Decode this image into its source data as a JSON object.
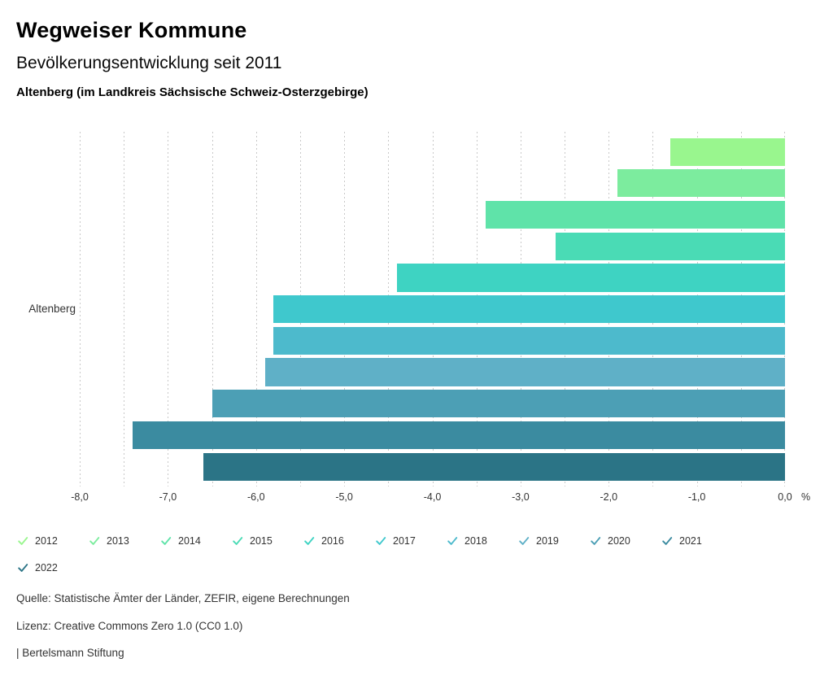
{
  "header": {
    "title": "Wegweiser Kommune",
    "subtitle": "Bevölkerungsentwicklung seit 2011",
    "region_line": "Altenberg (im Landkreis Sächsische Schweiz-Osterzgebirge)"
  },
  "chart_data": {
    "type": "bar",
    "orientation": "horizontal",
    "title": "Bevölkerungsentwicklung seit 2011",
    "category": "Altenberg",
    "xlim": [
      -8.0,
      0.0
    ],
    "grid_step": 0.5,
    "grid_color": "#c8c8c8",
    "x_ticks": [
      "-8,0",
      "-7,0",
      "-6,0",
      "-5,0",
      "-4,0",
      "-3,0",
      "-2,0",
      "-1,0",
      "0,0"
    ],
    "x_unit": "%",
    "legend_position": "bottom",
    "series": [
      {
        "name": "2012",
        "value": -1.3,
        "color": "#99f68e"
      },
      {
        "name": "2013",
        "value": -1.9,
        "color": "#7cec9e"
      },
      {
        "name": "2014",
        "value": -3.4,
        "color": "#5fe3a9"
      },
      {
        "name": "2015",
        "value": -2.6,
        "color": "#4adbb5"
      },
      {
        "name": "2016",
        "value": -4.4,
        "color": "#3ed3c2"
      },
      {
        "name": "2017",
        "value": -5.8,
        "color": "#3fc8cd"
      },
      {
        "name": "2018",
        "value": -5.8,
        "color": "#4dbacc"
      },
      {
        "name": "2019",
        "value": -5.9,
        "color": "#5fb0c7"
      },
      {
        "name": "2020",
        "value": -6.5,
        "color": "#4c9fb5"
      },
      {
        "name": "2021",
        "value": -7.4,
        "color": "#3b8ba0"
      },
      {
        "name": "2022",
        "value": -6.6,
        "color": "#2b7486"
      }
    ]
  },
  "footer": {
    "source": "Quelle: Statistische Ämter der Länder, ZEFIR, eigene Berechnungen",
    "license": "Lizenz: Creative Commons Zero 1.0 (CC0 1.0)",
    "attribution": "| Bertelsmann Stiftung"
  }
}
